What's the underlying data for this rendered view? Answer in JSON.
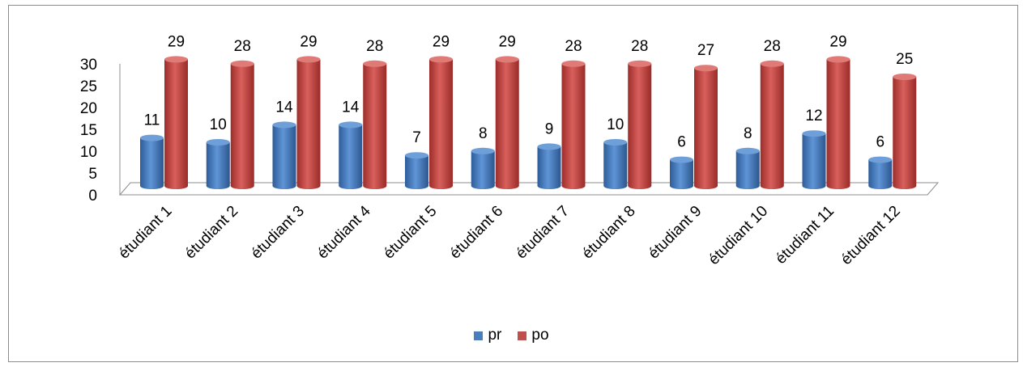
{
  "chart_data": {
    "type": "bar",
    "categories": [
      "étudiant 1",
      "étudiant 2",
      "étudiant 3",
      "étudiant 4",
      "étudiant 5",
      "étudiant 6",
      "étudiant 7",
      "étudiant 8",
      "étudiant 9",
      "étudiant 10",
      "étudiant 11",
      "étudiant 12"
    ],
    "series": [
      {
        "name": "pr",
        "color": "#4a7ebb",
        "values": [
          11,
          10,
          14,
          14,
          7,
          8,
          9,
          10,
          6,
          8,
          12,
          6
        ]
      },
      {
        "name": "po",
        "color": "#c0504d",
        "values": [
          29,
          28,
          29,
          28,
          29,
          29,
          28,
          28,
          27,
          28,
          29,
          25
        ]
      }
    ],
    "yticks": [
      "0",
      "5",
      "10",
      "15",
      "20",
      "25",
      "30"
    ],
    "ylim": [
      0,
      30
    ],
    "legend_position": "bottom",
    "style": "3d-cylinder"
  }
}
